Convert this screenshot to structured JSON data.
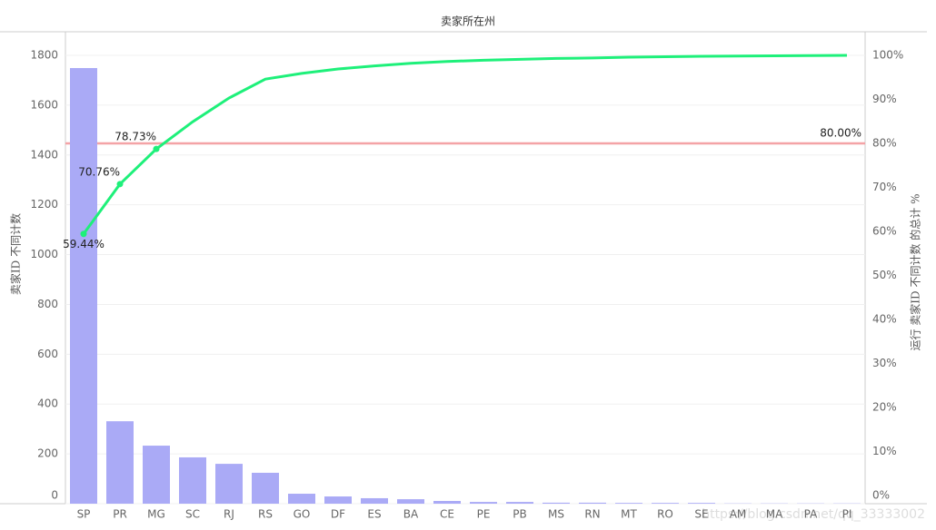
{
  "chart_data": {
    "type": "bar",
    "title": "卖家所在州",
    "y_label": "卖家ID 不同计数",
    "y2_label": "运行 卖家ID 不同计数 的总计 %",
    "watermark": "https://blog.csdn.net/qq_33333002",
    "categories": [
      "SP",
      "PR",
      "MG",
      "SC",
      "RJ",
      "RS",
      "GO",
      "DF",
      "ES",
      "BA",
      "CE",
      "PE",
      "PB",
      "MS",
      "RN",
      "MT",
      "RO",
      "SE",
      "AM",
      "MA",
      "PA",
      "PI"
    ],
    "series": [
      {
        "type": "bar",
        "color": "#aaaaf6",
        "values": [
          1749,
          331,
          233,
          186,
          160,
          124,
          40,
          29,
          22,
          18,
          11,
          7,
          7,
          4,
          4,
          3,
          3,
          3,
          1,
          1,
          1,
          1
        ]
      },
      {
        "type": "line",
        "axis": "y2",
        "color": "#1ef07a",
        "values": [
          59.44,
          70.76,
          78.73,
          84.9,
          90.3,
          94.6,
          95.9,
          96.9,
          97.6,
          98.2,
          98.6,
          98.9,
          99.1,
          99.3,
          99.4,
          99.6,
          99.7,
          99.8,
          99.85,
          99.9,
          99.95,
          100
        ],
        "value_labels": [
          "59.44%",
          "70.76%",
          "78.73%",
          null,
          null,
          null,
          null,
          null,
          null,
          null,
          null,
          null,
          null,
          null,
          null,
          null,
          null,
          null,
          null,
          null,
          null,
          null
        ]
      }
    ],
    "ylim": [
      0,
      1800
    ],
    "yticks": [
      0,
      200,
      400,
      600,
      800,
      1000,
      1200,
      1400,
      1600,
      1800
    ],
    "y2lim": [
      0,
      100
    ],
    "y2ticks": [
      {
        "value": 0,
        "label": "0%"
      },
      {
        "value": 10,
        "label": "10%"
      },
      {
        "value": 20,
        "label": "20%"
      },
      {
        "value": 30,
        "label": "30%"
      },
      {
        "value": 40,
        "label": "40%"
      },
      {
        "value": 50,
        "label": "50%"
      },
      {
        "value": 60,
        "label": "60%"
      },
      {
        "value": 70,
        "label": "70%"
      },
      {
        "value": 80,
        "label": "80%"
      },
      {
        "value": 90,
        "label": "90%"
      },
      {
        "value": 100,
        "label": "100%"
      }
    ],
    "reference_line": {
      "value": 80,
      "label": "80.00%",
      "axis": "y2",
      "color": "#f4a3a6"
    },
    "grid": true
  }
}
